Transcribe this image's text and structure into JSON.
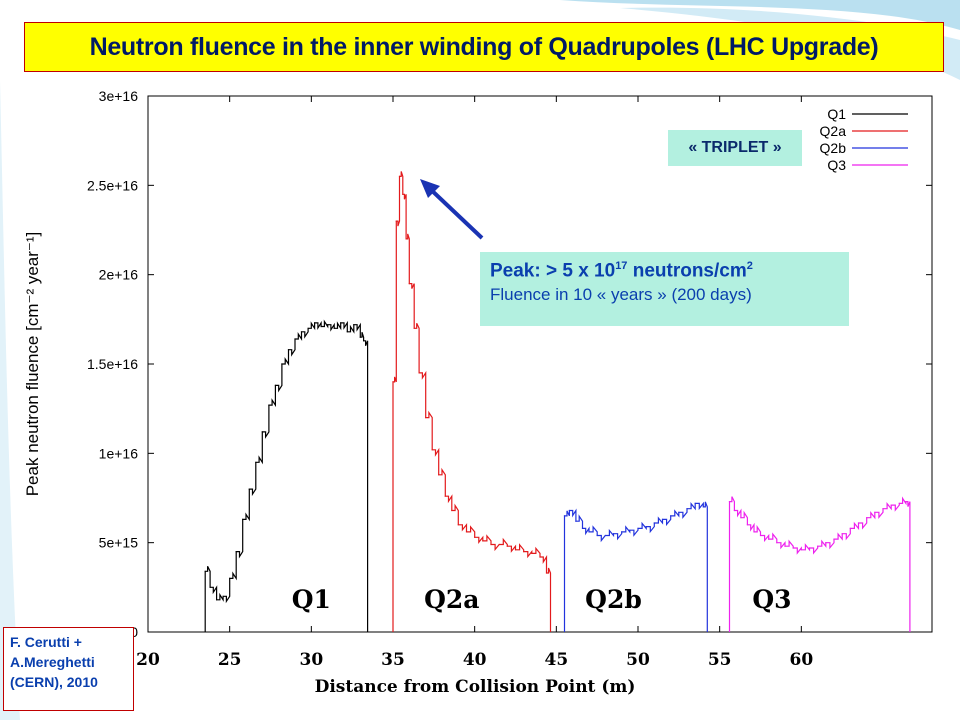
{
  "title": "Neutron fluence in the inner winding of Quadrupoles (LHC Upgrade)",
  "triplet_label": "« TRIPLET »",
  "peak_box": {
    "line1_prefix": "Peak: > 5 x 10",
    "line1_exp": "17",
    "line1_mid": " neutrons/cm",
    "line1_exp2": "2",
    "line2": "Fluence in 10 « years » (200 days)"
  },
  "credit": {
    "line1": "F. Cerutti +",
    "line2": "A.Mereghetti",
    "line3": "(CERN), 2010"
  },
  "colors": {
    "title_bg": "#ffff00",
    "title_border": "#c00000",
    "title_text": "#001a66",
    "box_bg": "#b3f0e0",
    "box_text": "#0a3fae",
    "arrow": "#1a33b3",
    "background_swoosh": "#7ec8e3"
  },
  "chart_data": {
    "type": "line",
    "title": "",
    "xlabel": "Distance from Collision Point (m)",
    "ylabel": "Peak neutron fluence [cm⁻² year⁻¹]",
    "xlim": [
      20,
      68
    ],
    "ylim": [
      0,
      3e+16
    ],
    "x_ticks": [
      "20",
      "25",
      "30",
      "35",
      "40",
      "45",
      "50",
      "55",
      "60"
    ],
    "y_ticks": [
      "0",
      "5e+15",
      "1e+16",
      "1.5e+16",
      "2e+16",
      "2.5e+16",
      "3e+16"
    ],
    "region_labels": [
      "Q1",
      "Q2a",
      "Q2b",
      "Q3"
    ],
    "legend_position": "top-right",
    "series": [
      {
        "name": "Q1",
        "color": "#000000",
        "x": [
          23.5,
          23.8,
          24.2,
          24.6,
          25.0,
          25.4,
          25.8,
          26.2,
          26.6,
          27.0,
          27.4,
          27.8,
          28.2,
          28.6,
          29.0,
          29.4,
          29.8,
          30.2,
          30.6,
          31.0,
          31.4,
          31.8,
          32.2,
          32.6,
          33.0,
          33.2
        ],
        "y": [
          3400000000000000.0,
          2500000000000000.0,
          1800000000000000.0,
          2000000000000000.0,
          3000000000000000.0,
          4500000000000000.0,
          6300000000000000.0,
          8000000000000000.0,
          9500000000000000.0,
          1.12e+16,
          1.27e+16,
          1.38e+16,
          1.5e+16,
          1.58e+16,
          1.64e+16,
          1.68e+16,
          1.7e+16,
          1.73e+16,
          1.71e+16,
          1.72e+16,
          1.7e+16,
          1.73e+16,
          1.68e+16,
          1.72e+16,
          1.65e+16,
          1.63e+16
        ]
      },
      {
        "name": "Q2a",
        "color": "#e31a1c",
        "x": [
          35.0,
          35.2,
          35.4,
          35.6,
          35.8,
          36.0,
          36.3,
          36.6,
          37.0,
          37.4,
          37.8,
          38.2,
          38.6,
          39.0,
          39.5,
          40.0,
          40.5,
          41.0,
          41.5,
          42.0,
          42.5,
          43.0,
          43.5,
          44.0,
          44.4
        ],
        "y": [
          1.4e+16,
          2.3e+16,
          2.55e+16,
          2.45e+16,
          2.2e+16,
          1.95e+16,
          1.7e+16,
          1.45e+16,
          1.2e+16,
          1.02e+16,
          8800000000000000.0,
          7600000000000000.0,
          6800000000000000.0,
          6000000000000000.0,
          5600000000000000.0,
          5300000000000000.0,
          5100000000000000.0,
          4900000000000000.0,
          4900000000000000.0,
          4800000000000000.0,
          4600000000000000.0,
          4500000000000000.0,
          4400000000000000.0,
          4200000000000000.0,
          3300000000000000.0
        ]
      },
      {
        "name": "Q2b",
        "color": "#2233dd",
        "x": [
          45.5,
          45.8,
          46.2,
          46.6,
          47.0,
          47.5,
          48.0,
          48.5,
          49.0,
          49.5,
          50.0,
          50.5,
          51.0,
          51.5,
          52.0,
          52.5,
          53.0,
          53.5,
          54.0
        ],
        "y": [
          6500000000000000.0,
          6800000000000000.0,
          6200000000000000.0,
          5800000000000000.0,
          5600000000000000.0,
          5400000000000000.0,
          5400000000000000.0,
          5500000000000000.0,
          5600000000000000.0,
          5700000000000000.0,
          5800000000000000.0,
          5900000000000000.0,
          6100000000000000.0,
          6300000000000000.0,
          6500000000000000.0,
          6700000000000000.0,
          6900000000000000.0,
          7200000000000000.0,
          7000000000000000.0
        ]
      },
      {
        "name": "Q3",
        "color": "#ee22ee",
        "x": [
          55.6,
          55.9,
          56.3,
          56.7,
          57.1,
          57.5,
          58.0,
          58.5,
          59.0,
          59.5,
          60.0,
          60.5,
          61.0,
          61.5,
          62.0,
          62.5,
          63.0,
          63.5,
          64.0,
          64.5,
          65.0,
          65.5,
          66.0,
          66.4
        ],
        "y": [
          7300000000000000.0,
          6800000000000000.0,
          6400000000000000.0,
          6000000000000000.0,
          5600000000000000.0,
          5400000000000000.0,
          5200000000000000.0,
          5000000000000000.0,
          4800000000000000.0,
          4700000000000000.0,
          4600000000000000.0,
          4700000000000000.0,
          4800000000000000.0,
          5000000000000000.0,
          5200000000000000.0,
          5500000000000000.0,
          5800000000000000.0,
          6100000000000000.0,
          6400000000000000.0,
          6700000000000000.0,
          6900000000000000.0,
          7100000000000000.0,
          7200000000000000.0,
          7300000000000000.0
        ]
      }
    ]
  }
}
